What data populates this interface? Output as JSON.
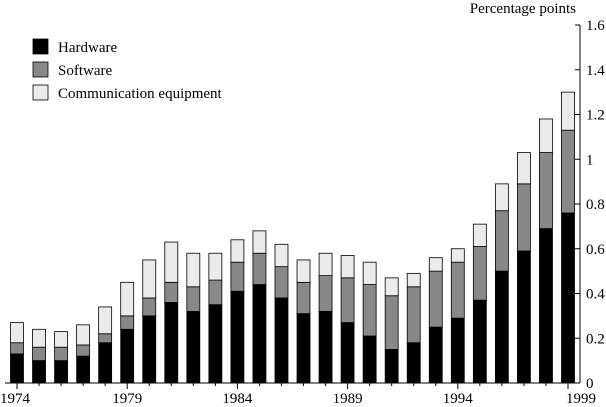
{
  "chart_data": {
    "type": "bar",
    "stacked": true,
    "title": "",
    "xlabel": "",
    "ylabel": "Percentage points",
    "y_axis_side": "right",
    "ylim": [
      0,
      1.6
    ],
    "yticks": [
      0,
      0.2,
      0.4,
      0.6,
      0.8,
      1,
      1.2,
      1.4,
      1.6
    ],
    "ytick_labels": [
      "0",
      "0.2",
      "0.4",
      "0.6",
      "0.8",
      "1",
      "1.2",
      "1.4",
      "1.6"
    ],
    "xticks": [
      1974,
      1979,
      1984,
      1989,
      1994,
      1999
    ],
    "categories": [
      1974,
      1975,
      1976,
      1977,
      1978,
      1979,
      1980,
      1981,
      1982,
      1983,
      1984,
      1985,
      1986,
      1987,
      1988,
      1989,
      1990,
      1991,
      1992,
      1993,
      1994,
      1995,
      1996,
      1997,
      1998,
      1999
    ],
    "grid": false,
    "legend_position": "top-left",
    "series": [
      {
        "name": "Hardware",
        "color": "#000000",
        "values": [
          0.13,
          0.1,
          0.1,
          0.12,
          0.18,
          0.24,
          0.3,
          0.36,
          0.32,
          0.35,
          0.41,
          0.44,
          0.38,
          0.31,
          0.32,
          0.27,
          0.21,
          0.15,
          0.18,
          0.25,
          0.29,
          0.37,
          0.5,
          0.59,
          0.69,
          0.76
        ]
      },
      {
        "name": "Software",
        "color": "#888888",
        "values": [
          0.05,
          0.06,
          0.06,
          0.05,
          0.04,
          0.06,
          0.08,
          0.09,
          0.11,
          0.11,
          0.13,
          0.14,
          0.14,
          0.14,
          0.16,
          0.2,
          0.23,
          0.24,
          0.25,
          0.25,
          0.25,
          0.24,
          0.27,
          0.3,
          0.34,
          0.37
        ]
      },
      {
        "name": "Communication equipment",
        "color": "#ebebeb",
        "values": [
          0.09,
          0.08,
          0.07,
          0.09,
          0.12,
          0.15,
          0.17,
          0.18,
          0.15,
          0.12,
          0.1,
          0.1,
          0.1,
          0.1,
          0.1,
          0.1,
          0.1,
          0.08,
          0.06,
          0.06,
          0.06,
          0.1,
          0.12,
          0.14,
          0.15,
          0.17
        ]
      }
    ]
  }
}
